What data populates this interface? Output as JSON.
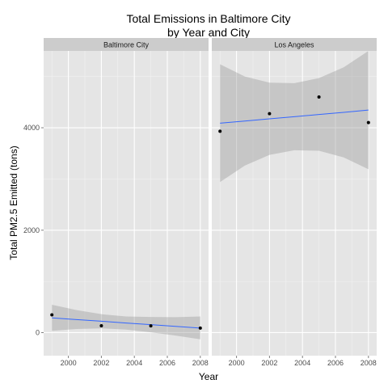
{
  "chart_data": {
    "type": "scatter",
    "title": "Total Emissions in Baltimore City",
    "subtitle": "by Year and City",
    "xlabel": "Year",
    "ylabel": "Total PM2.5 Emitted (tons)",
    "xlim": [
      1998.5,
      2008.5
    ],
    "ylim": [
      -450,
      5500
    ],
    "x_ticks": [
      2000,
      2002,
      2004,
      2006,
      2008
    ],
    "y_ticks": [
      0,
      2000,
      4000
    ],
    "grid": true,
    "fit_line_color": "#3366ff",
    "band_color": "#999999",
    "panel_bg": "#e5e5e5",
    "strip_bg": "#cccccc",
    "panels": [
      {
        "name": "Baltimore City",
        "points": [
          {
            "x": 1999,
            "y": 347
          },
          {
            "x": 2002,
            "y": 134
          },
          {
            "x": 2005,
            "y": 131
          },
          {
            "x": 2008,
            "y": 89
          }
        ],
        "fit": {
          "x": [
            1999,
            2000.5,
            2002,
            2003.5,
            2005,
            2006.5,
            2008
          ],
          "y": [
            287,
            255,
            222,
            188,
            155,
            122,
            88
          ],
          "lower": [
            35,
            70,
            83,
            60,
            5,
            -58,
            -130
          ],
          "upper": [
            545,
            440,
            360,
            315,
            305,
            302,
            315
          ]
        }
      },
      {
        "name": "Los Angeles",
        "points": [
          {
            "x": 1999,
            "y": 3931
          },
          {
            "x": 2002,
            "y": 4274
          },
          {
            "x": 2005,
            "y": 4601
          },
          {
            "x": 2008,
            "y": 4101
          }
        ],
        "fit": {
          "x": [
            1999,
            2000.5,
            2002,
            2003.5,
            2005,
            2006.5,
            2008
          ],
          "y": [
            4090,
            4130,
            4175,
            4215,
            4260,
            4300,
            4345
          ],
          "lower": [
            2940,
            3260,
            3470,
            3560,
            3550,
            3420,
            3190
          ],
          "upper": [
            5240,
            5000,
            4880,
            4870,
            4970,
            5180,
            5500
          ]
        }
      }
    ]
  }
}
